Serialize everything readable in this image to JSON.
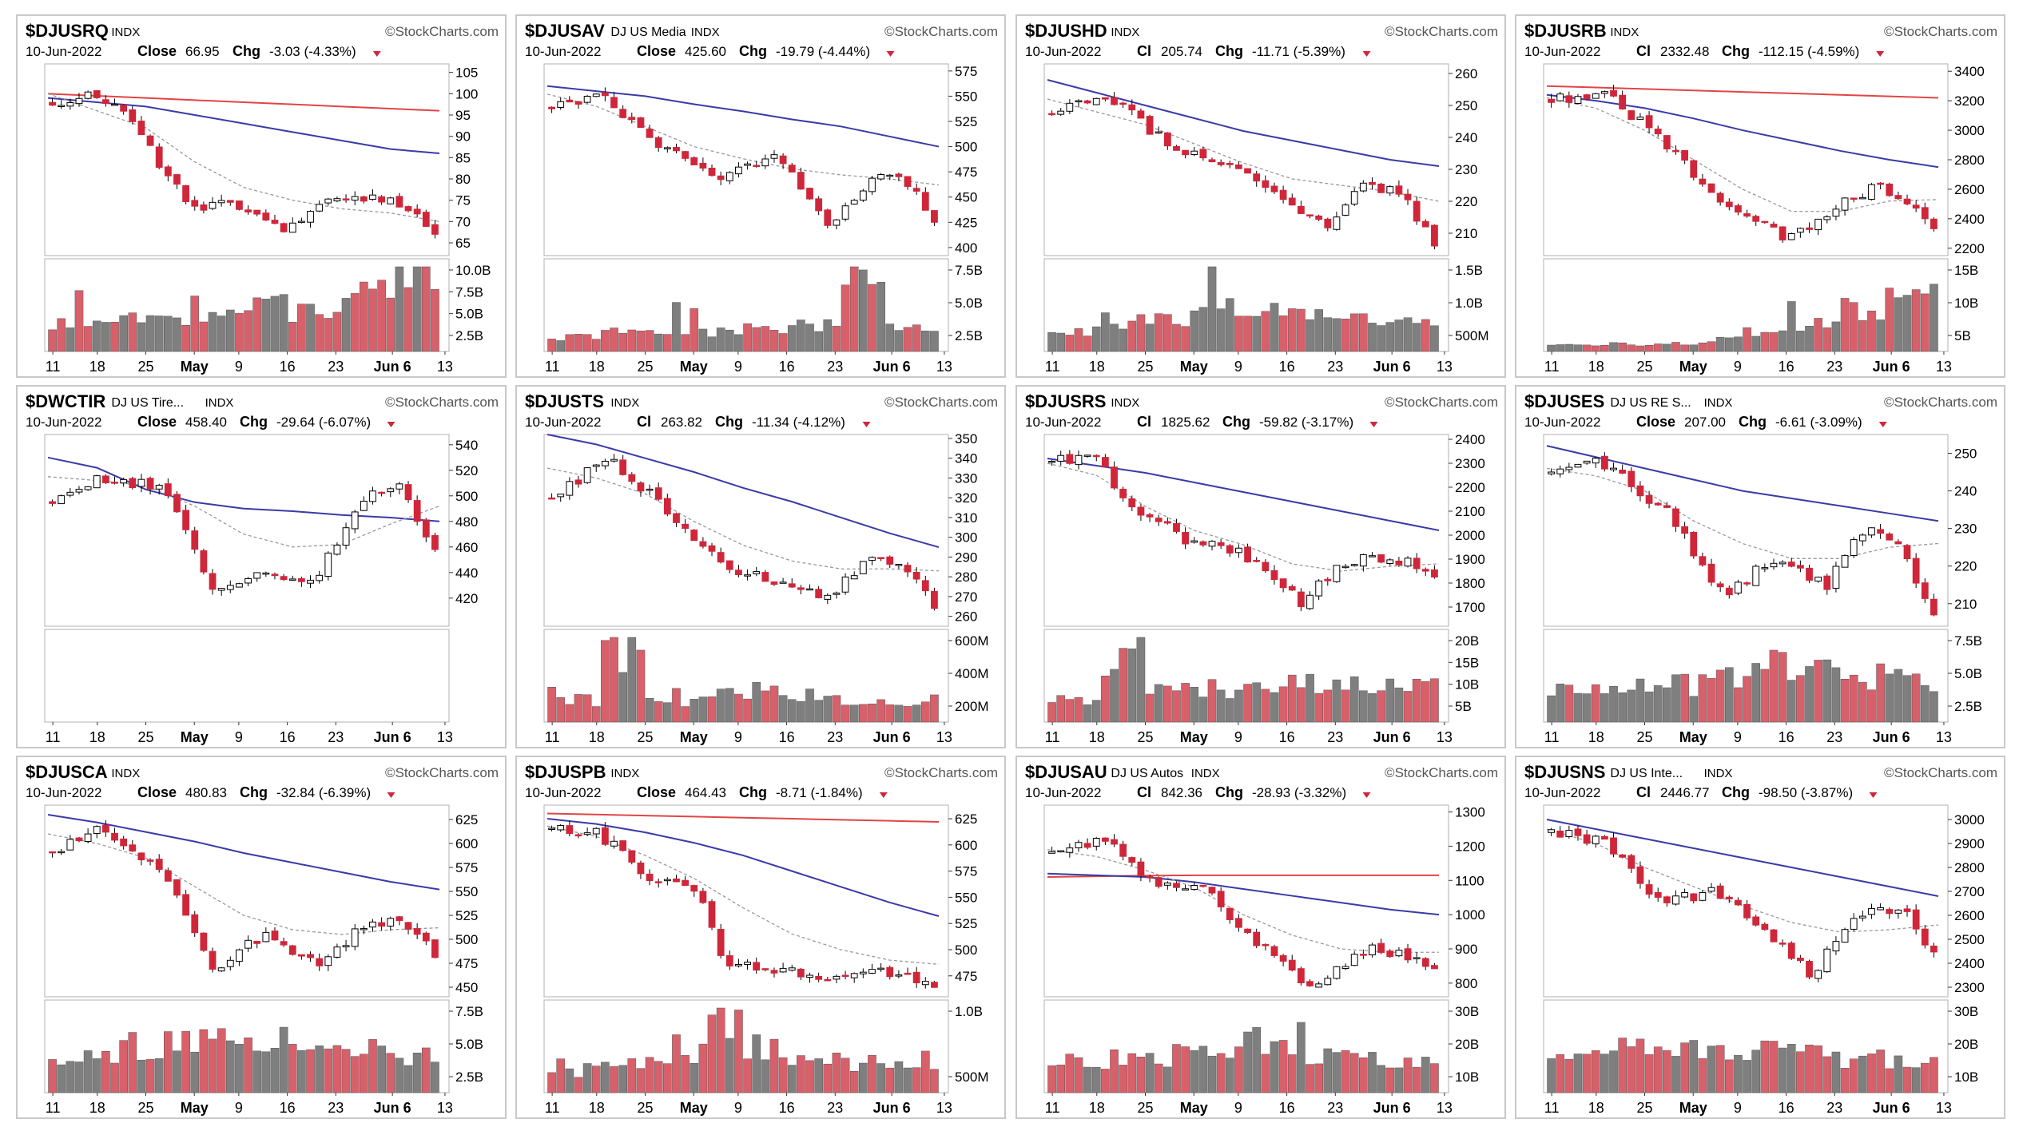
{
  "colors": {
    "up": "#ffffff",
    "down": "#d0263a",
    "outline": "#000000",
    "ma_fast": "#999999",
    "ma_mid": "#3a3aa8",
    "ma_slow": "#e04545",
    "vol_up": "#7f7f7f",
    "vol_down": "#d8606a",
    "watermark": "#555555",
    "grid": "#d8d8d8"
  },
  "header_labels": {
    "date": "10-Jun-2022",
    "chg": "Chg",
    "watermark": "StockCharts.com"
  },
  "x_ticks": [
    "11",
    "18",
    "25",
    "May",
    "9",
    "16",
    "23",
    "Jun 6",
    "13"
  ],
  "chart_data": [
    {
      "type": "candlestick",
      "symbol": "$DJUSRQ",
      "name": "",
      "exch": "INDX",
      "close_label": "Close",
      "close": "66.95",
      "chg": "-3.03 (-4.33%)",
      "y_ticks": [
        105,
        100,
        95,
        90,
        85,
        80,
        75,
        70,
        65
      ],
      "ylim": [
        62,
        107
      ],
      "vol_ticks": [
        "10.0B",
        "7.5B",
        "5.0B",
        "2.5B"
      ],
      "vol_max": 12,
      "start": 98,
      "end": 67,
      "path": [
        [
          0,
          98
        ],
        [
          0.1,
          100
        ],
        [
          0.2,
          94
        ],
        [
          0.36,
          73
        ],
        [
          0.5,
          74
        ],
        [
          0.62,
          68
        ],
        [
          0.75,
          76
        ],
        [
          0.9,
          75
        ],
        [
          1,
          67
        ]
      ],
      "ma_fast": [
        100,
        96,
        92,
        84,
        78,
        75,
        73,
        72,
        70
      ],
      "ma_mid": [
        99,
        98,
        97,
        95,
        93,
        91,
        89,
        87,
        86
      ],
      "ma_slow": [
        100,
        99.5,
        99,
        98.5,
        98,
        97.5,
        97,
        96.5,
        96
      ],
      "vol_profile": [
        0.35,
        0.4,
        0.45,
        0.5,
        0.6,
        0.55,
        0.8,
        1.0
      ]
    },
    {
      "type": "candlestick",
      "symbol": "$DJUSAV",
      "name": "DJ US Media",
      "exch": "INDX",
      "close_label": "Close",
      "close": "425.60",
      "chg": "-19.79 (-4.44%)",
      "y_ticks": [
        575,
        550,
        525,
        500,
        475,
        450,
        425,
        400
      ],
      "ylim": [
        392,
        582
      ],
      "vol_ticks": [
        "7.5B",
        "5.0B",
        "2.5B"
      ],
      "vol_max": 10,
      "start": 540,
      "end": 425,
      "path": [
        [
          0,
          540
        ],
        [
          0.12,
          552
        ],
        [
          0.25,
          510
        ],
        [
          0.45,
          470
        ],
        [
          0.6,
          490
        ],
        [
          0.72,
          420
        ],
        [
          0.85,
          470
        ],
        [
          0.94,
          465
        ],
        [
          1,
          425
        ]
      ],
      "ma_fast": [
        552,
        540,
        520,
        500,
        488,
        478,
        472,
        468,
        462
      ],
      "ma_mid": [
        560,
        555,
        550,
        542,
        535,
        527,
        520,
        510,
        500
      ],
      "ma_slow": null,
      "vol_profile": [
        0.2,
        0.25,
        0.3,
        0.25,
        0.3,
        0.35,
        0.9,
        0.3
      ]
    },
    {
      "type": "candlestick",
      "symbol": "$DJUSHD",
      "name": "",
      "exch": "INDX",
      "close_label": "Cl",
      "close": "205.74",
      "chg": "-11.71 (-5.39%)",
      "y_ticks": [
        260,
        250,
        240,
        230,
        220,
        210
      ],
      "ylim": [
        203,
        263
      ],
      "vol_ticks": [
        "1.5B",
        "1.0B",
        "500M"
      ],
      "vol_max": 1.8,
      "start": 248,
      "end": 206,
      "path": [
        [
          0,
          248
        ],
        [
          0.15,
          253
        ],
        [
          0.3,
          238
        ],
        [
          0.45,
          232
        ],
        [
          0.6,
          222
        ],
        [
          0.72,
          212
        ],
        [
          0.8,
          225
        ],
        [
          0.92,
          222
        ],
        [
          1,
          206
        ]
      ],
      "ma_fast": [
        252,
        248,
        244,
        238,
        232,
        227,
        225,
        223,
        220
      ],
      "ma_mid": [
        258,
        254,
        250,
        246,
        242,
        239,
        236,
        233,
        231
      ],
      "ma_slow": null,
      "vol_profile": [
        0.3,
        0.4,
        0.45,
        0.6,
        0.5,
        0.45,
        0.4,
        0.35
      ]
    },
    {
      "type": "candlestick",
      "symbol": "$DJUSRB",
      "name": "",
      "exch": "INDX",
      "close_label": "Cl",
      "close": "2332.48",
      "chg": "-112.15 (-4.59%)",
      "y_ticks": [
        3400,
        3200,
        3000,
        2800,
        2600,
        2400,
        2200
      ],
      "ylim": [
        2150,
        3450
      ],
      "vol_ticks": [
        "15B",
        "10B",
        "5B"
      ],
      "vol_max": 17,
      "start": 3200,
      "end": 2332,
      "path": [
        [
          0,
          3200
        ],
        [
          0.15,
          3250
        ],
        [
          0.3,
          2900
        ],
        [
          0.45,
          2500
        ],
        [
          0.62,
          2250
        ],
        [
          0.75,
          2500
        ],
        [
          0.85,
          2620
        ],
        [
          0.92,
          2550
        ],
        [
          1,
          2332
        ]
      ],
      "ma_fast": [
        3220,
        3150,
        3000,
        2800,
        2600,
        2450,
        2450,
        2520,
        2530
      ],
      "ma_mid": [
        3240,
        3200,
        3150,
        3080,
        3000,
        2930,
        2860,
        2800,
        2750
      ],
      "ma_slow": [
        3300,
        3290,
        3280,
        3270,
        3260,
        3250,
        3240,
        3230,
        3220
      ],
      "vol_profile": [
        0.1,
        0.1,
        0.12,
        0.15,
        0.25,
        0.4,
        0.6,
        0.85
      ]
    },
    {
      "type": "candlestick",
      "symbol": "$DWCTIR",
      "name": "DJ US Tire...",
      "exch": "INDX",
      "close_label": "Close",
      "close": "458.40",
      "chg": "-29.64 (-6.07%)",
      "y_ticks": [
        540,
        520,
        500,
        480,
        460,
        440,
        420
      ],
      "ylim": [
        398,
        548
      ],
      "vol_ticks": [],
      "vol_max": 1,
      "start": 495,
      "end": 458,
      "path": [
        [
          0,
          495
        ],
        [
          0.12,
          515
        ],
        [
          0.3,
          505
        ],
        [
          0.42,
          425
        ],
        [
          0.55,
          440
        ],
        [
          0.68,
          430
        ],
        [
          0.8,
          495
        ],
        [
          0.9,
          510
        ],
        [
          1,
          458
        ]
      ],
      "ma_fast": [
        515,
        512,
        508,
        492,
        470,
        460,
        462,
        478,
        492
      ],
      "ma_mid": [
        530,
        522,
        505,
        495,
        490,
        488,
        485,
        483,
        480
      ],
      "ma_slow": null,
      "vol_profile": null
    },
    {
      "type": "candlestick",
      "symbol": "$DJUSTS",
      "name": "",
      "exch": "INDX",
      "close_label": "Cl",
      "close": "263.82",
      "chg": "-11.34 (-4.12%)",
      "y_ticks": [
        350,
        340,
        330,
        320,
        310,
        300,
        290,
        280,
        270,
        260
      ],
      "ylim": [
        255,
        352
      ],
      "vol_ticks": [
        "600M",
        "400M",
        "200M"
      ],
      "vol_max": 700,
      "start": 320,
      "end": 264,
      "path": [
        [
          0,
          320
        ],
        [
          0.15,
          340
        ],
        [
          0.3,
          315
        ],
        [
          0.45,
          285
        ],
        [
          0.6,
          278
        ],
        [
          0.72,
          270
        ],
        [
          0.82,
          288
        ],
        [
          0.92,
          286
        ],
        [
          1,
          264
        ]
      ],
      "ma_fast": [
        335,
        330,
        322,
        308,
        296,
        288,
        284,
        284,
        283
      ],
      "ma_mid": [
        352,
        347,
        340,
        333,
        325,
        318,
        310,
        302,
        295
      ],
      "ma_slow": null,
      "vol_profile": [
        0.3,
        0.95,
        0.3,
        0.35,
        0.45,
        0.35,
        0.3,
        0.3
      ]
    },
    {
      "type": "candlestick",
      "symbol": "$DJUSRS",
      "name": "",
      "exch": "INDX",
      "close_label": "Cl",
      "close": "1825.62",
      "chg": "-59.82 (-3.17%)",
      "y_ticks": [
        2400,
        2300,
        2200,
        2100,
        2000,
        1900,
        1800,
        1700
      ],
      "ylim": [
        1620,
        2420
      ],
      "vol_ticks": [
        "20B",
        "15B",
        "10B",
        "5B"
      ],
      "vol_max": 22,
      "start": 2310,
      "end": 1825,
      "path": [
        [
          0,
          2310
        ],
        [
          0.12,
          2320
        ],
        [
          0.18,
          2160
        ],
        [
          0.35,
          1980
        ],
        [
          0.5,
          1920
        ],
        [
          0.65,
          1720
        ],
        [
          0.78,
          1900
        ],
        [
          0.92,
          1890
        ],
        [
          1,
          1825
        ]
      ],
      "ma_fast": [
        2300,
        2250,
        2120,
        2020,
        1960,
        1880,
        1850,
        1870,
        1880
      ],
      "ma_mid": [
        2320,
        2290,
        2260,
        2220,
        2180,
        2140,
        2100,
        2060,
        2020
      ],
      "ma_slow": null,
      "vol_profile": [
        0.3,
        0.9,
        0.4,
        0.45,
        0.5,
        0.55,
        0.5,
        0.45
      ]
    },
    {
      "type": "candlestick",
      "symbol": "$DJUSES",
      "name": "DJ US RE S...",
      "exch": "INDX",
      "close_label": "Close",
      "close": "207.00",
      "chg": "-6.61 (-3.09%)",
      "y_ticks": [
        250,
        240,
        230,
        220,
        210
      ],
      "ylim": [
        204,
        255
      ],
      "vol_ticks": [
        "7.5B",
        "5.0B",
        "2.5B"
      ],
      "vol_max": 8.5,
      "start": 245,
      "end": 207,
      "path": [
        [
          0,
          245
        ],
        [
          0.12,
          248
        ],
        [
          0.3,
          235
        ],
        [
          0.45,
          212
        ],
        [
          0.58,
          222
        ],
        [
          0.72,
          215
        ],
        [
          0.82,
          230
        ],
        [
          0.92,
          224
        ],
        [
          1,
          207
        ]
      ],
      "ma_fast": [
        246,
        244,
        240,
        232,
        226,
        222,
        222,
        225,
        226
      ],
      "ma_mid": [
        252,
        249,
        246,
        243,
        240,
        238,
        236,
        234,
        232
      ],
      "ma_slow": null,
      "vol_profile": [
        0.4,
        0.45,
        0.5,
        0.55,
        0.85,
        0.7,
        0.6,
        0.55
      ]
    },
    {
      "type": "candlestick",
      "symbol": "$DJUSCA",
      "name": "",
      "exch": "INDX",
      "close_label": "Close",
      "close": "480.83",
      "chg": "-32.84 (-6.39%)",
      "y_ticks": [
        625,
        600,
        575,
        550,
        525,
        500,
        475,
        450
      ],
      "ylim": [
        440,
        640
      ],
      "vol_ticks": [
        "7.5B",
        "5.0B",
        "2.5B"
      ],
      "vol_max": 9,
      "start": 590,
      "end": 481,
      "path": [
        [
          0,
          590
        ],
        [
          0.12,
          615
        ],
        [
          0.28,
          575
        ],
        [
          0.42,
          470
        ],
        [
          0.55,
          505
        ],
        [
          0.7,
          470
        ],
        [
          0.8,
          510
        ],
        [
          0.92,
          520
        ],
        [
          1,
          481
        ]
      ],
      "ma_fast": [
        610,
        600,
        585,
        555,
        525,
        510,
        505,
        510,
        512
      ],
      "ma_mid": [
        630,
        622,
        612,
        602,
        590,
        580,
        570,
        560,
        552
      ],
      "ma_slow": null,
      "vol_profile": [
        0.5,
        0.55,
        0.65,
        0.9,
        0.7,
        0.6,
        0.55,
        0.5
      ]
    },
    {
      "type": "candlestick",
      "symbol": "$DJUSPB",
      "name": "",
      "exch": "INDX",
      "close_label": "Close",
      "close": "464.43",
      "chg": "-8.71 (-1.84%)",
      "y_ticks": [
        625,
        600,
        575,
        550,
        525,
        500,
        475
      ],
      "ylim": [
        455,
        638
      ],
      "vol_ticks": [
        "1.0B",
        "500M"
      ],
      "vol_max": 1.3,
      "start": 615,
      "end": 464,
      "path": [
        [
          0,
          615
        ],
        [
          0.12,
          612
        ],
        [
          0.25,
          570
        ],
        [
          0.38,
          560
        ],
        [
          0.45,
          490
        ],
        [
          0.6,
          480
        ],
        [
          0.72,
          470
        ],
        [
          0.9,
          480
        ],
        [
          1,
          464
        ]
      ],
      "ma_fast": [
        618,
        608,
        590,
        568,
        540,
        515,
        500,
        490,
        486
      ],
      "ma_mid": [
        625,
        620,
        612,
        602,
        590,
        575,
        560,
        545,
        532
      ],
      "ma_slow": [
        630,
        629,
        628,
        627,
        626,
        625,
        624,
        623,
        622
      ],
      "vol_profile": [
        0.3,
        0.35,
        0.4,
        0.9,
        0.6,
        0.5,
        0.4,
        0.35
      ]
    },
    {
      "type": "candlestick",
      "symbol": "$DJUSAU",
      "name": "DJ US Autos",
      "exch": "INDX",
      "close_label": "Cl",
      "close": "842.36",
      "chg": "-28.93 (-3.32%)",
      "y_ticks": [
        1300,
        1200,
        1100,
        1000,
        900,
        800
      ],
      "ylim": [
        760,
        1320
      ],
      "vol_ticks": [
        "30B",
        "20B",
        "10B"
      ],
      "vol_max": 34,
      "start": 1180,
      "end": 842,
      "path": [
        [
          0,
          1180
        ],
        [
          0.15,
          1220
        ],
        [
          0.25,
          1100
        ],
        [
          0.4,
          1080
        ],
        [
          0.55,
          900
        ],
        [
          0.68,
          790
        ],
        [
          0.82,
          900
        ],
        [
          0.92,
          880
        ],
        [
          1,
          842
        ]
      ],
      "ma_fast": [
        1190,
        1170,
        1130,
        1080,
        1000,
        940,
        900,
        890,
        890
      ],
      "ma_mid": [
        1120,
        1115,
        1110,
        1095,
        1075,
        1055,
        1035,
        1015,
        1000
      ],
      "ma_slow": [
        1110,
        1112,
        1114,
        1115,
        1115,
        1115,
        1115,
        1115,
        1115
      ],
      "vol_profile": [
        0.4,
        0.45,
        0.5,
        0.55,
        0.75,
        0.5,
        0.45,
        0.4
      ]
    },
    {
      "type": "candlestick",
      "symbol": "$DJUSNS",
      "name": "DJ US Inte...",
      "exch": "INDX",
      "close_label": "Cl",
      "close": "2446.77",
      "chg": "-98.50 (-3.87%)",
      "y_ticks": [
        3000,
        2900,
        2800,
        2700,
        2600,
        2500,
        2400,
        2300
      ],
      "ylim": [
        2260,
        3060
      ],
      "vol_ticks": [
        "30B",
        "20B",
        "10B"
      ],
      "vol_max": 34,
      "start": 2950,
      "end": 2447,
      "path": [
        [
          0,
          2950
        ],
        [
          0.15,
          2900
        ],
        [
          0.28,
          2650
        ],
        [
          0.42,
          2700
        ],
        [
          0.55,
          2550
        ],
        [
          0.68,
          2350
        ],
        [
          0.8,
          2600
        ],
        [
          0.92,
          2620
        ],
        [
          1,
          2447
        ]
      ],
      "ma_fast": [
        2960,
        2900,
        2800,
        2720,
        2640,
        2570,
        2530,
        2540,
        2560
      ],
      "ma_mid": [
        3000,
        2960,
        2920,
        2880,
        2840,
        2800,
        2760,
        2720,
        2680
      ],
      "ma_slow": null,
      "vol_profile": [
        0.5,
        0.6,
        0.55,
        0.5,
        0.55,
        0.5,
        0.45,
        0.45
      ]
    }
  ]
}
